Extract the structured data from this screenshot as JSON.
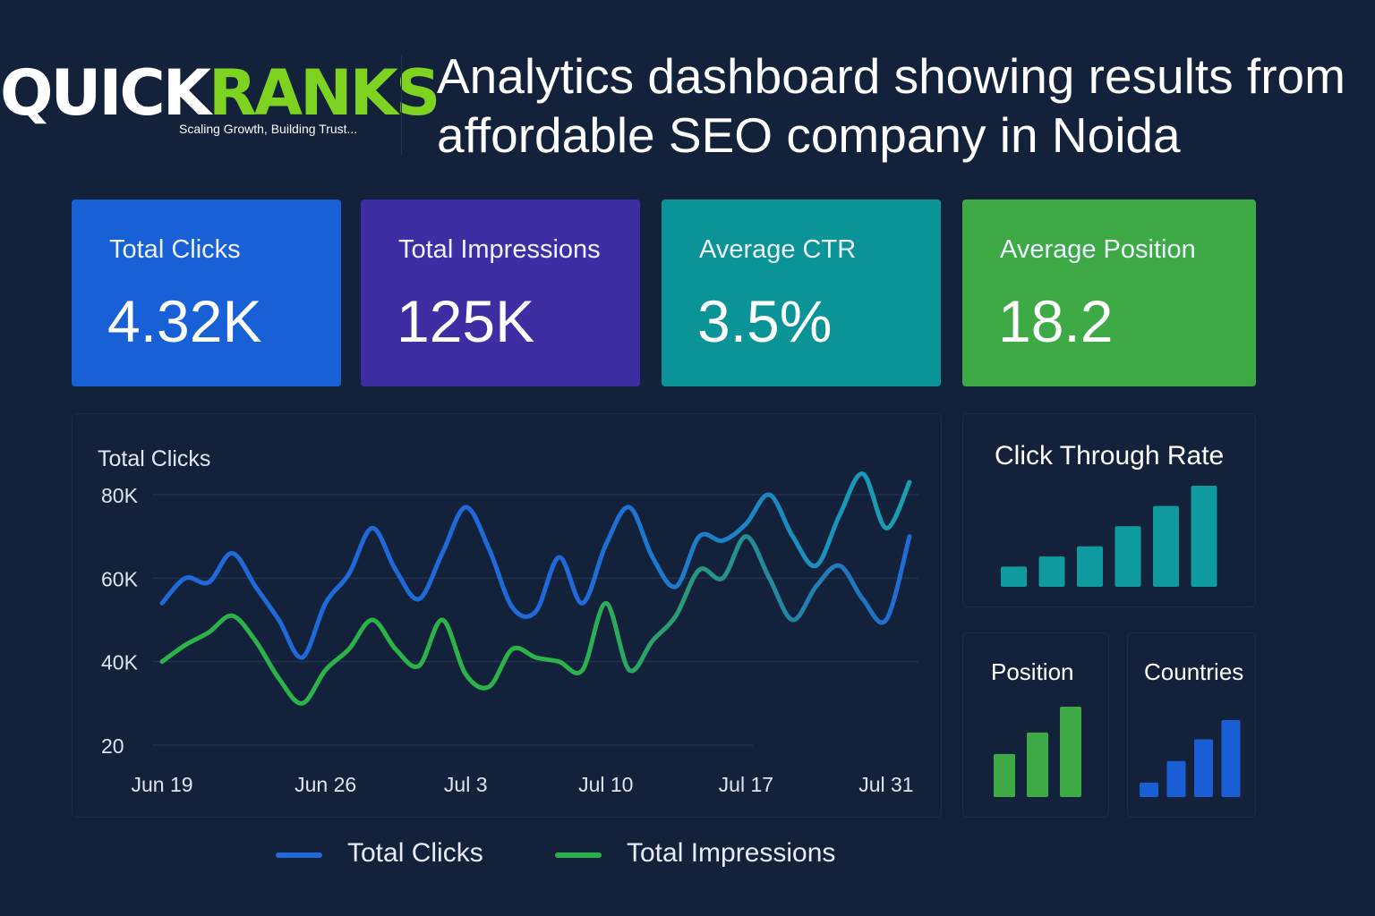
{
  "logo": {
    "word_part1": "QUICK",
    "word_part2": "RANKS",
    "tagline": "Scaling Growth, Building Trust..."
  },
  "page_title": "Analytics dashboard showing results from affordable SEO company in Noida",
  "kpis": [
    {
      "label": "Total Clicks",
      "value": "4.32K",
      "color": "#1760d6"
    },
    {
      "label": "Total Impressions",
      "value": "125K",
      "color": "#3d2fa3"
    },
    {
      "label": "Average CTR",
      "value": "3.5%",
      "color": "#0b9497"
    },
    {
      "label": "Average Position",
      "value": "18.2",
      "color": "#3daa45"
    }
  ],
  "main_chart": {
    "title": "Total Clicks",
    "legend": [
      "Total Clicks",
      "Total Impressions"
    ]
  },
  "chart_data": [
    {
      "type": "line",
      "title": "Total Clicks",
      "y_ticks": [
        "80K",
        "60K",
        "40K",
        "20"
      ],
      "y_tick_values": [
        80000,
        60000,
        40000,
        20000
      ],
      "x_ticks": [
        "Jun 19",
        "Jun 26",
        "Jul 3",
        "Jul 10",
        "Jul 17",
        "Jul 31"
      ],
      "x_tick_index": [
        0,
        7,
        13,
        19,
        25,
        31
      ],
      "ylim": [
        20000,
        80000
      ],
      "grid": true,
      "legend_position": "bottom",
      "series": [
        {
          "name": "Total Clicks",
          "color": "#1f6ad8",
          "color_end": "#1a9fb0",
          "values": [
            54000,
            60000,
            59000,
            66000,
            58000,
            50000,
            41000,
            54000,
            61000,
            72000,
            62000,
            55000,
            66000,
            77000,
            67000,
            53000,
            52000,
            65000,
            54000,
            68000,
            77000,
            65000,
            58000,
            70000,
            69000,
            73000,
            80000,
            70000,
            63000,
            75000,
            85000,
            72000,
            83000
          ]
        },
        {
          "name": "Total Impressions",
          "color": "#2bb34a",
          "color_end": "#1f6ad8",
          "values": [
            40000,
            44000,
            47000,
            51000,
            45000,
            36000,
            30000,
            38000,
            43000,
            50000,
            43000,
            39000,
            50000,
            37000,
            34000,
            43000,
            41000,
            40000,
            38000,
            54000,
            38000,
            45000,
            51000,
            62000,
            60000,
            70000,
            60000,
            50000,
            58000,
            63000,
            55000,
            50000,
            70000
          ]
        }
      ]
    },
    {
      "type": "bar",
      "title": "Click Through Rate",
      "values": [
        1,
        1.5,
        2,
        3,
        4,
        5
      ],
      "color": "#0e9a9e"
    },
    {
      "type": "bar",
      "title": "Position",
      "values": [
        2,
        3,
        4.2
      ],
      "color": "#3daa45"
    },
    {
      "type": "bar",
      "title": "Countries",
      "values": [
        0.6,
        1.5,
        2.4,
        3.2
      ],
      "color": "#1a5ed6"
    }
  ]
}
